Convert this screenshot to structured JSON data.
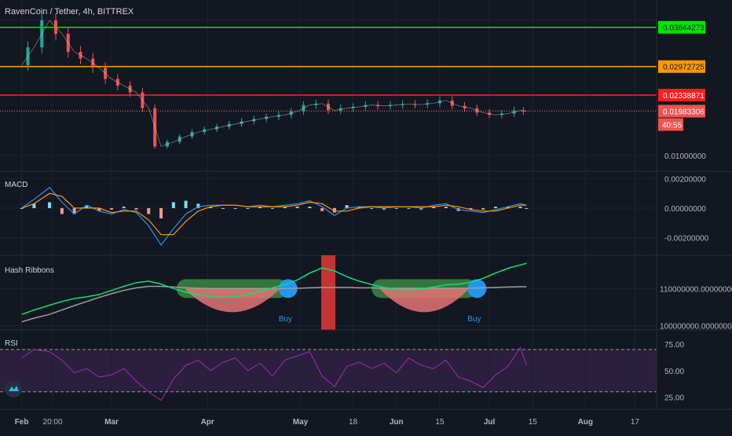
{
  "header": {
    "title": "RavenCoin / Tether, 4h, BITTREX"
  },
  "colors": {
    "background": "#131722",
    "grid": "#1f2330",
    "text": "#b2b5be",
    "green_line": "#00e600",
    "orange_line": "#ff9800",
    "red_line": "#ff1e1e",
    "candle_up": "#26a69a",
    "candle_down": "#ef5350",
    "macd_line": "#2196f3",
    "signal_line": "#ff9800",
    "hash_fast": "#00e676",
    "hash_slow": "#9e9e9e",
    "rsi_line": "#9c27b0",
    "rsi_band": "#2a1f3d",
    "buy_blue": "#2196f3"
  },
  "chart_data": [
    {
      "name": "price",
      "type": "line",
      "title": "RavenCoin / Tether, 4h, BITTREX",
      "x_dates": [
        "2020-02-01",
        "2020-02-05",
        "2020-02-10",
        "2020-02-14",
        "2020-02-18",
        "2020-02-22",
        "2020-02-26",
        "2020-03-01",
        "2020-03-05",
        "2020-03-09",
        "2020-03-13",
        "2020-03-17",
        "2020-03-21",
        "2020-03-25",
        "2020-03-29",
        "2020-04-02",
        "2020-04-06",
        "2020-04-10",
        "2020-04-14",
        "2020-04-18",
        "2020-04-22",
        "2020-04-26",
        "2020-04-30",
        "2020-05-04",
        "2020-05-08",
        "2020-05-12",
        "2020-05-16",
        "2020-05-20",
        "2020-05-24",
        "2020-05-28",
        "2020-06-01",
        "2020-06-05",
        "2020-06-09",
        "2020-06-13",
        "2020-06-17",
        "2020-06-21",
        "2020-06-25",
        "2020-06-29",
        "2020-07-03",
        "2020-07-07",
        "2020-07-11",
        "2020-07-13"
      ],
      "y_values": [
        0.03,
        0.034,
        0.04,
        0.037,
        0.033,
        0.0315,
        0.0295,
        0.027,
        0.0255,
        0.024,
        0.0205,
        0.012,
        0.013,
        0.0142,
        0.0152,
        0.0158,
        0.0164,
        0.017,
        0.0176,
        0.0181,
        0.0186,
        0.019,
        0.0198,
        0.0212,
        0.0215,
        0.02,
        0.0205,
        0.0208,
        0.0212,
        0.021,
        0.0212,
        0.0214,
        0.0213,
        0.0216,
        0.0222,
        0.021,
        0.0205,
        0.0195,
        0.019,
        0.0193,
        0.02,
        0.0198
      ],
      "levels": [
        {
          "label": "0.03844273",
          "value": 0.03844273,
          "color": "#00e600"
        },
        {
          "label": "0.02972725",
          "value": 0.02972725,
          "color": "#ff9800"
        },
        {
          "label": "0.02338871",
          "value": 0.02338871,
          "color": "#ff1e1e"
        },
        {
          "label": "0.01983306",
          "value": 0.01983306,
          "color": "#ef5350"
        }
      ],
      "countdown": "40:55",
      "y_ticks": [
        "0.01000000"
      ],
      "ylim": [
        0.0065,
        0.0445
      ]
    },
    {
      "name": "macd",
      "type": "line",
      "title": "MACD",
      "x_dates": [
        "2020-02-01",
        "2020-02-05",
        "2020-02-10",
        "2020-02-14",
        "2020-02-18",
        "2020-02-22",
        "2020-02-26",
        "2020-03-01",
        "2020-03-05",
        "2020-03-09",
        "2020-03-13",
        "2020-03-17",
        "2020-03-21",
        "2020-03-25",
        "2020-03-29",
        "2020-04-02",
        "2020-04-06",
        "2020-04-10",
        "2020-04-14",
        "2020-04-18",
        "2020-04-22",
        "2020-04-26",
        "2020-04-30",
        "2020-05-04",
        "2020-05-08",
        "2020-05-12",
        "2020-05-16",
        "2020-05-20",
        "2020-05-24",
        "2020-05-28",
        "2020-06-01",
        "2020-06-05",
        "2020-06-09",
        "2020-06-13",
        "2020-06-17",
        "2020-06-21",
        "2020-06-25",
        "2020-06-29",
        "2020-07-03",
        "2020-07-07",
        "2020-07-11",
        "2020-07-13"
      ],
      "series": [
        {
          "name": "MACD",
          "values": [
            0.0,
            0.0006,
            0.0014,
            0.0004,
            -0.0004,
            0.0002,
            -0.0002,
            -0.0004,
            -0.0001,
            -0.0003,
            -0.0012,
            -0.0025,
            -0.0014,
            -0.0004,
            0.0001,
            0.0002,
            0.0002,
            0.0002,
            0.0001,
            0.0002,
            0.0001,
            0.0002,
            0.0003,
            0.0005,
            0.0001,
            -0.0005,
            0.0,
            0.0001,
            0.0001,
            0.0,
            0.0001,
            0.0001,
            0.0,
            0.0002,
            0.0003,
            -0.0001,
            -0.0002,
            -0.0003,
            -0.0001,
            0.0001,
            0.0003,
            0.0002
          ]
        },
        {
          "name": "Signal",
          "values": [
            0.0,
            0.0003,
            0.001,
            0.0008,
            0.0,
            0.0,
            0.0,
            -0.0003,
            -0.0002,
            -0.0002,
            -0.0008,
            -0.0018,
            -0.0018,
            -0.0009,
            -0.0002,
            0.0001,
            0.0002,
            0.0002,
            0.0001,
            0.0001,
            0.0001,
            0.0001,
            0.0002,
            0.0004,
            0.0003,
            -0.0002,
            -0.0002,
            0.0,
            0.0001,
            0.0001,
            0.0001,
            0.0001,
            0.0001,
            0.0001,
            0.0002,
            0.0001,
            -0.0001,
            -0.0002,
            -0.0002,
            0.0,
            0.0002,
            0.0002
          ]
        }
      ],
      "y_ticks": [
        {
          "label": "0.00200000",
          "value": 0.002
        },
        {
          "label": "0.00000000",
          "value": 0.0
        },
        {
          "label": "-0.00200000",
          "value": -0.002
        }
      ],
      "ylim": [
        -0.0032,
        0.0025
      ]
    },
    {
      "name": "hash_ribbons",
      "type": "line",
      "title": "Hash Ribbons",
      "x_dates": [
        "2020-02-01",
        "2020-02-05",
        "2020-02-10",
        "2020-02-14",
        "2020-02-18",
        "2020-02-22",
        "2020-02-26",
        "2020-03-01",
        "2020-03-05",
        "2020-03-09",
        "2020-03-13",
        "2020-03-17",
        "2020-03-21",
        "2020-03-25",
        "2020-03-29",
        "2020-04-02",
        "2020-04-06",
        "2020-04-10",
        "2020-04-14",
        "2020-04-18",
        "2020-04-22",
        "2020-04-26",
        "2020-04-30",
        "2020-05-04",
        "2020-05-08",
        "2020-05-12",
        "2020-05-16",
        "2020-05-20",
        "2020-05-24",
        "2020-05-28",
        "2020-06-01",
        "2020-06-05",
        "2020-06-09",
        "2020-06-13",
        "2020-06-17",
        "2020-06-21",
        "2020-06-25",
        "2020-06-29",
        "2020-07-03",
        "2020-07-07",
        "2020-07-11",
        "2020-07-13"
      ],
      "series": [
        {
          "name": "fast",
          "values": [
            103.0,
            104.2,
            105.5,
            106.5,
            107.3,
            107.8,
            108.4,
            109.5,
            110.6,
            111.6,
            112.0,
            111.2,
            110.0,
            109.0,
            108.3,
            107.8,
            107.6,
            107.8,
            108.4,
            109.3,
            110.2,
            111.1,
            112.3,
            114.2,
            115.6,
            114.8,
            113.2,
            112.0,
            111.1,
            110.3,
            109.8,
            109.6,
            109.9,
            110.4,
            111.0,
            111.2,
            111.7,
            112.8,
            114.2,
            115.5,
            116.4,
            116.8
          ]
        },
        {
          "name": "slow",
          "values": [
            101.0,
            102.0,
            103.0,
            104.2,
            105.4,
            106.5,
            107.6,
            108.6,
            109.5,
            110.2,
            110.6,
            110.6,
            110.4,
            110.2,
            110.1,
            110.0,
            110.0,
            110.0,
            110.0,
            110.0,
            110.0,
            110.0,
            110.1,
            110.2,
            110.3,
            110.3,
            110.3,
            110.2,
            110.2,
            110.1,
            110.1,
            110.1,
            110.1,
            110.1,
            110.1,
            110.1,
            110.1,
            110.2,
            110.3,
            110.4,
            110.5,
            110.5
          ]
        }
      ],
      "signals": [
        {
          "label": "Buy",
          "date": "2020-04-27"
        },
        {
          "label": "Buy",
          "date": "2020-06-27"
        }
      ],
      "y_ticks": [
        {
          "label": "110000000.00000000",
          "value": 110
        },
        {
          "label": "100000000.00000000",
          "value": 100
        }
      ],
      "ylim": [
        98.8,
        119.0
      ]
    },
    {
      "name": "rsi",
      "type": "line",
      "title": "RSI",
      "x_dates": [
        "2020-02-01",
        "2020-02-05",
        "2020-02-10",
        "2020-02-14",
        "2020-02-18",
        "2020-02-22",
        "2020-02-26",
        "2020-03-01",
        "2020-03-05",
        "2020-03-09",
        "2020-03-13",
        "2020-03-17",
        "2020-03-21",
        "2020-03-25",
        "2020-03-29",
        "2020-04-02",
        "2020-04-06",
        "2020-04-10",
        "2020-04-14",
        "2020-04-18",
        "2020-04-22",
        "2020-04-26",
        "2020-04-30",
        "2020-05-04",
        "2020-05-08",
        "2020-05-12",
        "2020-05-16",
        "2020-05-20",
        "2020-05-24",
        "2020-05-28",
        "2020-06-01",
        "2020-06-05",
        "2020-06-09",
        "2020-06-13",
        "2020-06-17",
        "2020-06-21",
        "2020-06-25",
        "2020-06-29",
        "2020-07-03",
        "2020-07-07",
        "2020-07-11",
        "2020-07-13"
      ],
      "values": [
        62,
        70,
        68,
        60,
        48,
        52,
        44,
        46,
        52,
        40,
        30,
        22,
        42,
        55,
        60,
        50,
        58,
        62,
        50,
        57,
        45,
        60,
        64,
        68,
        45,
        35,
        54,
        58,
        52,
        57,
        48,
        62,
        55,
        52,
        60,
        44,
        40,
        34,
        46,
        54,
        72,
        55
      ],
      "y_ticks": [
        {
          "label": "75.00",
          "value": 75
        },
        {
          "label": "50.00",
          "value": 50
        },
        {
          "label": "25.00",
          "value": 25
        }
      ],
      "bands": [
        30,
        70
      ],
      "ylim": [
        13.5,
        88.5
      ]
    }
  ],
  "x_axis": {
    "ticks": [
      {
        "label": "Feb",
        "date": "2020-02-01",
        "bold": true
      },
      {
        "label": "20:00",
        "date": "2020-02-11",
        "bold": false
      },
      {
        "label": "Mar",
        "date": "2020-03-01",
        "bold": true
      },
      {
        "label": "Apr",
        "date": "2020-04-01",
        "bold": true
      },
      {
        "label": "May",
        "date": "2020-05-01",
        "bold": true
      },
      {
        "label": "18",
        "date": "2020-05-18",
        "bold": false
      },
      {
        "label": "Jun",
        "date": "2020-06-01",
        "bold": true
      },
      {
        "label": "15",
        "date": "2020-06-15",
        "bold": false
      },
      {
        "label": "Jul",
        "date": "2020-07-01",
        "bold": true
      },
      {
        "label": "15",
        "date": "2020-07-15",
        "bold": false
      },
      {
        "label": "Aug",
        "date": "2020-08-01",
        "bold": true
      },
      {
        "label": "17",
        "date": "2020-08-17",
        "bold": false
      }
    ],
    "range": [
      "2020-01-25",
      "2020-08-24"
    ]
  }
}
